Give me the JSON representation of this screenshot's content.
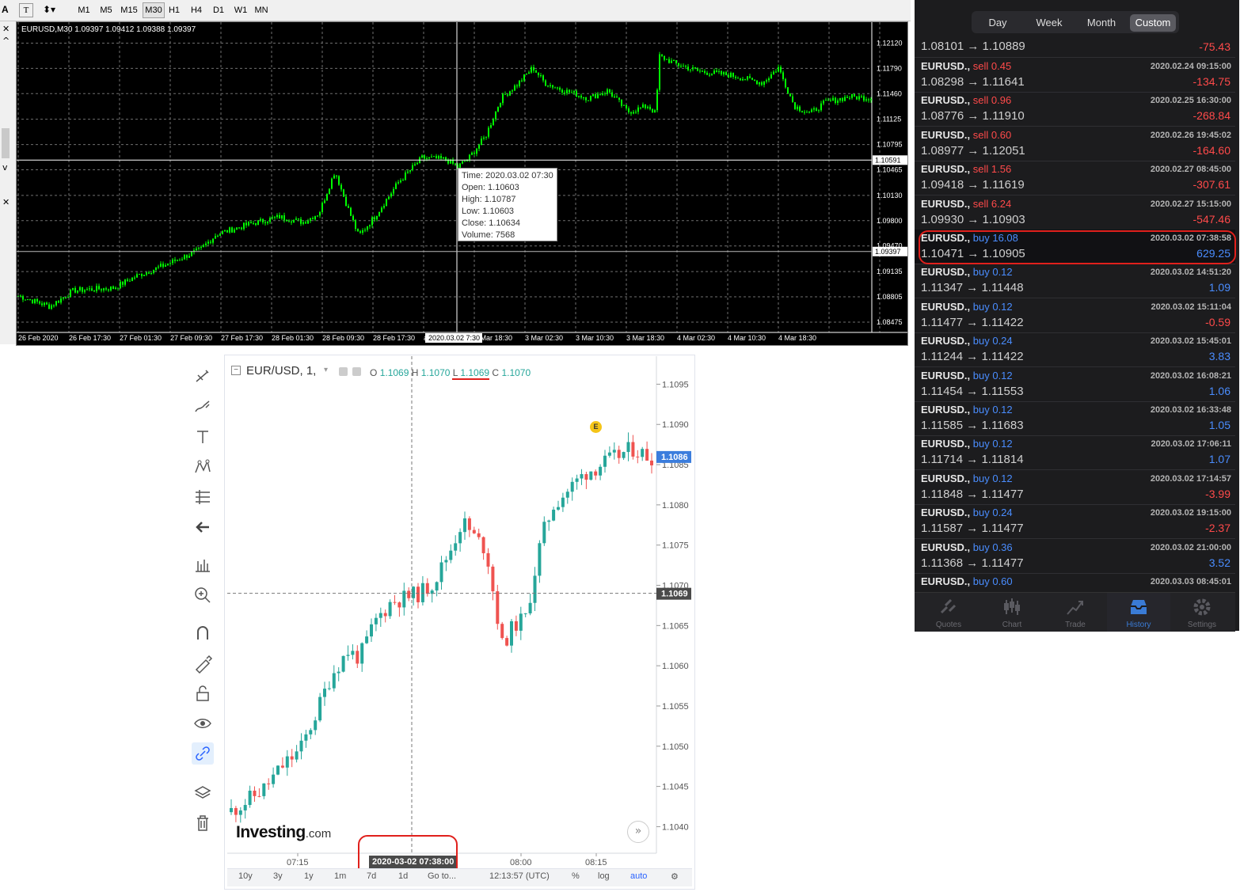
{
  "mt4": {
    "toolbar": {
      "timeframes": [
        "M1",
        "M5",
        "M15",
        "M30",
        "H1",
        "H4",
        "D1",
        "W1",
        "MN"
      ],
      "active_timeframe": "M30"
    },
    "header": "EURUSD,M30  1.09397 1.09412 1.09388 1.09397",
    "price_axis": [
      "1.12120",
      "1.11790",
      "1.11460",
      "1.11125",
      "1.10795",
      "1.10465",
      "1.10130",
      "1.09800",
      "1.09470",
      "1.09135",
      "1.08805",
      "1.08475"
    ],
    "crosshair_price": "1.10591",
    "current_price": "1.09397",
    "time_axis": [
      "26 Feb 2020",
      "26 Feb 17:30",
      "27 Feb 01:30",
      "27 Feb 09:30",
      "27 Feb 17:30",
      "28 Feb 01:30",
      "28 Feb 09:30",
      "28 Feb 17:30",
      "ar 10:30",
      "2 Mar 18:30",
      "3 Mar 02:30",
      "3 Mar 10:30",
      "3 Mar 18:30",
      "4 Mar 02:30",
      "4 Mar 10:30",
      "4 Mar 18:30"
    ],
    "crosshair_time": "2020.03.02 7:30",
    "tooltip": {
      "time": "Time: 2020.03.02 07:30",
      "open": "Open: 1.10603",
      "high": "High: 1.10787",
      "low": "Low:  1.10603",
      "close": "Close: 1.10634",
      "volume": "Volume: 7568"
    },
    "colors": {
      "bg": "#000000",
      "candle": "#00ff00",
      "grid": "#6f6f6f"
    }
  },
  "investing": {
    "symbol": "EUR/USD, 1,",
    "ohlc": {
      "o_label": "O",
      "o": "1.1069",
      "h_label": "H",
      "h": "1.1070",
      "l_label": "L",
      "l": "1.1069",
      "c_label": "C",
      "c": "1.1070"
    },
    "price_axis": [
      "1.1095",
      "1.1090",
      "1.1085",
      "1.1080",
      "1.1075",
      "1.1070",
      "1.1065",
      "1.1060",
      "1.1055",
      "1.1050",
      "1.1045",
      "1.1040"
    ],
    "current_price": "1.1086",
    "crosshair_price": "1.1069",
    "time_axis": [
      "07:15",
      "08:00",
      "08:15"
    ],
    "crosshair_time": "2020-03-02 07:38:00",
    "event_marker": "E",
    "logo_main": "Investing",
    "logo_suffix": ".com",
    "bottom_bar": {
      "ranges": [
        "10y",
        "3y",
        "1y",
        "1m",
        "7d",
        "1d"
      ],
      "goto": "Go to...",
      "clock": "12:13:57 (UTC)",
      "percent": "%",
      "log": "log",
      "auto": "auto"
    },
    "colors": {
      "up": "#26a69a",
      "down": "#ef5350",
      "auto": "#2962ff"
    }
  },
  "mobile": {
    "tabs": [
      "Day",
      "Week",
      "Month",
      "Custom"
    ],
    "active_tab": "Custom",
    "first_row": {
      "prices": "1.08101 → 1.10889",
      "pl": "-75.43"
    },
    "trades": [
      {
        "symbol": "EURUSD.,",
        "side": "sell",
        "volume": "0.45",
        "time": "2020.02.24 09:15:00",
        "prices": "1.08298 → 1.11641",
        "pl": "-134.75"
      },
      {
        "symbol": "EURUSD.,",
        "side": "sell",
        "volume": "0.96",
        "time": "2020.02.25 16:30:00",
        "prices": "1.08776 → 1.11910",
        "pl": "-268.84"
      },
      {
        "symbol": "EURUSD.,",
        "side": "sell",
        "volume": "0.60",
        "time": "2020.02.26 19:45:02",
        "prices": "1.08977 → 1.12051",
        "pl": "-164.60"
      },
      {
        "symbol": "EURUSD.,",
        "side": "sell",
        "volume": "1.56",
        "time": "2020.02.27 08:45:00",
        "prices": "1.09418 → 1.11619",
        "pl": "-307.61"
      },
      {
        "symbol": "EURUSD.,",
        "side": "sell",
        "volume": "6.24",
        "time": "2020.02.27 15:15:00",
        "prices": "1.09930 → 1.10903",
        "pl": "-547.46"
      },
      {
        "symbol": "EURUSD.,",
        "side": "buy",
        "volume": "16.08",
        "time": "2020.03.02 07:38:58",
        "prices": "1.10471 → 1.10905",
        "pl": "629.25"
      },
      {
        "symbol": "EURUSD.,",
        "side": "buy",
        "volume": "0.12",
        "time": "2020.03.02 14:51:20",
        "prices": "1.11347 → 1.11448",
        "pl": "1.09"
      },
      {
        "symbol": "EURUSD.,",
        "side": "buy",
        "volume": "0.12",
        "time": "2020.03.02 15:11:04",
        "prices": "1.11477 → 1.11422",
        "pl": "-0.59"
      },
      {
        "symbol": "EURUSD.,",
        "side": "buy",
        "volume": "0.24",
        "time": "2020.03.02 15:45:01",
        "prices": "1.11244 → 1.11422",
        "pl": "3.83"
      },
      {
        "symbol": "EURUSD.,",
        "side": "buy",
        "volume": "0.12",
        "time": "2020.03.02 16:08:21",
        "prices": "1.11454 → 1.11553",
        "pl": "1.06"
      },
      {
        "symbol": "EURUSD.,",
        "side": "buy",
        "volume": "0.12",
        "time": "2020.03.02 16:33:48",
        "prices": "1.11585 → 1.11683",
        "pl": "1.05"
      },
      {
        "symbol": "EURUSD.,",
        "side": "buy",
        "volume": "0.12",
        "time": "2020.03.02 17:06:11",
        "prices": "1.11714 → 1.11814",
        "pl": "1.07"
      },
      {
        "symbol": "EURUSD.,",
        "side": "buy",
        "volume": "0.12",
        "time": "2020.03.02 17:14:57",
        "prices": "1.11848 → 1.11477",
        "pl": "-3.99"
      },
      {
        "symbol": "EURUSD.,",
        "side": "buy",
        "volume": "0.24",
        "time": "2020.03.02 19:15:00",
        "prices": "1.11587 → 1.11477",
        "pl": "-2.37"
      },
      {
        "symbol": "EURUSD.,",
        "side": "buy",
        "volume": "0.36",
        "time": "2020.03.02 21:00:00",
        "prices": "1.11368 → 1.11477",
        "pl": "3.52"
      },
      {
        "symbol": "EURUSD.,",
        "side": "buy",
        "volume": "0.60",
        "time": "2020.03.03 08:45:01",
        "prices": "",
        "pl": ""
      }
    ],
    "highlighted_trade_index": 5,
    "nav": [
      {
        "label": "Quotes",
        "icon": "quotes-icon"
      },
      {
        "label": "Chart",
        "icon": "chart-icon"
      },
      {
        "label": "Trade",
        "icon": "trade-icon"
      },
      {
        "label": "History",
        "icon": "history-icon"
      },
      {
        "label": "Settings",
        "icon": "settings-icon"
      }
    ],
    "active_nav": "History",
    "colors": {
      "sell": "#ff4a4a",
      "buy": "#4a8dff",
      "loss": "#ff4a4a",
      "profit": "#4a8dff",
      "highlight": "#e0201c"
    }
  }
}
